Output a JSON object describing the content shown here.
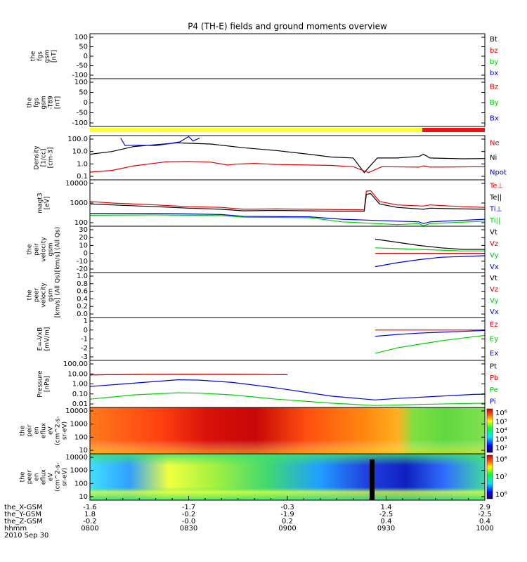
{
  "title": "P4 (TH-E) fields and ground moments overview",
  "colors": {
    "black": "#000000",
    "red": "#e00000",
    "green": "#00d000",
    "blue": "#0000e0",
    "yellow": "#ffff30",
    "bar_red": "#ee1111",
    "frame": "#000000",
    "background": "#ffffff"
  },
  "panels": [
    {
      "id": "fgs",
      "ylabel": [
        "the",
        "fgs",
        "gsm",
        "[nT]"
      ],
      "yticks": [
        "100",
        "50",
        "0",
        "-50",
        "-100"
      ],
      "ylim": [
        -120,
        120
      ],
      "legend": [
        {
          "label": "Bt",
          "color": "#000000"
        },
        {
          "label": "bz",
          "color": "#e00000"
        },
        {
          "label": "by",
          "color": "#00d000"
        },
        {
          "label": "bx",
          "color": "#0000e0"
        }
      ]
    },
    {
      "id": "fgs-t89",
      "ylabel": [
        "the",
        "fgs",
        "gsm",
        "-T89",
        "[nT]"
      ],
      "yticks": [
        "100",
        "50",
        "0",
        "-50",
        "-100"
      ],
      "ylim": [
        -120,
        120
      ],
      "legend": [
        {
          "label": "Bz",
          "color": "#e00000"
        },
        {
          "label": "By",
          "color": "#00d000"
        },
        {
          "label": "Bx",
          "color": "#0000e0"
        }
      ]
    },
    {
      "id": "density",
      "ylabel": [
        "Density",
        "[1/cc]",
        "[cm-3]"
      ],
      "yticks": [
        "100.0",
        "10.0",
        "1.0",
        "0.1"
      ],
      "scale": "log",
      "legend": [
        {
          "label": "Ne",
          "color": "#e00000"
        },
        {
          "label": "Ni",
          "color": "#000000"
        },
        {
          "label": "Npot",
          "color": "#0000e0"
        }
      ]
    },
    {
      "id": "temperature",
      "ylabel": [
        "magt3",
        "[eV]"
      ],
      "yticks": [
        "10000",
        "1000",
        "100"
      ],
      "scale": "log",
      "legend": [
        {
          "label": "Te⊥",
          "color": "#e00000"
        },
        {
          "label": "Te||",
          "color": "#000000"
        },
        {
          "label": "Ti⊥",
          "color": "#0000e0"
        },
        {
          "label": "Ti||",
          "color": "#00d000"
        }
      ]
    },
    {
      "id": "peir-velocity",
      "ylabel": [
        "the",
        "peir",
        "velocity",
        "gsm",
        "[km/s] (All Qs)"
      ],
      "yticks": [
        "30",
        "20",
        "10",
        "0",
        "-10",
        "-20"
      ],
      "ylim": [
        -25,
        30
      ],
      "legend": [
        {
          "label": "Vt",
          "color": "#000000"
        },
        {
          "label": "Vz",
          "color": "#e00000"
        },
        {
          "label": "Vy",
          "color": "#00d000"
        },
        {
          "label": "Vx",
          "color": "#0000e0"
        }
      ]
    },
    {
      "id": "peer-velocity",
      "ylabel": [
        "the",
        "peer",
        "velocity",
        "gsm",
        "[km/s] (All Qs)"
      ],
      "yticks": [
        "1.0",
        "0.8",
        "0.6",
        "0.4",
        "0.2",
        "0.0"
      ],
      "ylim": [
        0,
        1
      ],
      "legend": [
        {
          "label": "Vt",
          "color": "#000000"
        },
        {
          "label": "Vz",
          "color": "#e00000"
        },
        {
          "label": "Vy",
          "color": "#00d000"
        },
        {
          "label": "Vx",
          "color": "#0000e0"
        }
      ]
    },
    {
      "id": "efield",
      "ylabel": [
        "E=-VxB",
        "[mV/m]"
      ],
      "yticks": [
        "1",
        "0",
        "-1",
        "-2",
        "-3"
      ],
      "ylim": [
        -3,
        1.5
      ],
      "legend": [
        {
          "label": "Ez",
          "color": "#e00000"
        },
        {
          "label": "Ey",
          "color": "#00d000"
        },
        {
          "label": "Ex",
          "color": "#0000e0"
        }
      ]
    },
    {
      "id": "pressure",
      "ylabel": [
        "Pressure",
        "[nPa]"
      ],
      "yticks": [
        "100.00",
        "10.00",
        "1.00",
        "0.10",
        "0.01"
      ],
      "scale": "log",
      "legend": [
        {
          "label": "Pt",
          "color": "#000000"
        },
        {
          "label": "Pb",
          "color": "#e00000"
        },
        {
          "label": "Pe",
          "color": "#00d000"
        },
        {
          "label": "Pi",
          "color": "#0000e0"
        }
      ]
    },
    {
      "id": "peir-eflux",
      "ylabel": [
        "the",
        "peir",
        "en",
        "eflux",
        "eV",
        "(cm^2-s-",
        "sr-eV)"
      ],
      "yticks": [
        "10000",
        "1000",
        "100",
        "10"
      ],
      "scale": "log",
      "colorbar_ticks": [
        "10⁶",
        "10⁵",
        "10⁴",
        "10³",
        "10²"
      ]
    },
    {
      "id": "peer-eflux",
      "ylabel": [
        "the",
        "peer",
        "en",
        "eflux",
        "eV",
        "(cm^2-s-",
        "sr-eV)"
      ],
      "yticks": [
        "10000",
        "1000",
        "100",
        "10"
      ],
      "scale": "log",
      "colorbar_ticks": [
        "10⁸",
        "10⁷",
        "10⁶"
      ]
    }
  ],
  "xaxis": {
    "row_labels": [
      "the_X-GSM",
      "the_Y-GSM",
      "the_Z-GSM",
      "hhmm",
      "2010 Sep 30"
    ],
    "ticks": [
      {
        "x": "0800",
        "x_gsm": "-1.6",
        "y_gsm": "1.8",
        "z_gsm": "-0.2"
      },
      {
        "x": "0830",
        "x_gsm": "-1.7",
        "y_gsm": "-0.2",
        "z_gsm": "-0.0"
      },
      {
        "x": "0900",
        "x_gsm": "-0.3",
        "y_gsm": "-1.9",
        "z_gsm": "0.2"
      },
      {
        "x": "0930",
        "x_gsm": "1.4",
        "y_gsm": "-2.5",
        "z_gsm": "0.4"
      },
      {
        "x": "1000",
        "x_gsm": "2.9",
        "y_gsm": "-2.5",
        "z_gsm": "0.4"
      }
    ]
  },
  "chart_data": {
    "type": "line",
    "title": "P4 (TH-E) fields and ground moments overview",
    "x_range": [
      "0800",
      "1000"
    ],
    "mode_bar": {
      "yellow_until": "0941",
      "red_from": "0941"
    },
    "series": {
      "density": {
        "Ni": [
          [
            0,
            6
          ],
          [
            10,
            10
          ],
          [
            20,
            25
          ],
          [
            40,
            50
          ],
          [
            55,
            40
          ],
          [
            70,
            20
          ],
          [
            85,
            12
          ],
          [
            100,
            6
          ],
          [
            110,
            3.6
          ],
          [
            120,
            3.0
          ],
          [
            125,
            0.2
          ],
          [
            131,
            3
          ],
          [
            140,
            3
          ],
          [
            150,
            4
          ],
          [
            152,
            6
          ],
          [
            155,
            3
          ],
          [
            170,
            2.6
          ],
          [
            180,
            2.7
          ]
        ],
        "Ne": [
          [
            0,
            0.22
          ],
          [
            10,
            0.3
          ],
          [
            20,
            0.7
          ],
          [
            35,
            1.5
          ],
          [
            45,
            1.6
          ],
          [
            55,
            1.4
          ],
          [
            63,
            0.8
          ],
          [
            66,
            0.95
          ],
          [
            75,
            1.1
          ],
          [
            85,
            0.9
          ],
          [
            95,
            0.85
          ],
          [
            110,
            0.75
          ],
          [
            120,
            0.6
          ],
          [
            127,
            0.2
          ],
          [
            133,
            0.6
          ],
          [
            150,
            0.55
          ],
          [
            152,
            0.7
          ],
          [
            155,
            0.55
          ],
          [
            180,
            0.6
          ]
        ],
        "Npot": [
          [
            14,
            120
          ],
          [
            16,
            30
          ],
          [
            22,
            32
          ],
          [
            30,
            30
          ],
          [
            35,
            40
          ],
          [
            41,
            60
          ],
          [
            45,
            160
          ],
          [
            47,
            70
          ],
          [
            50,
            120
          ]
        ]
      },
      "temperature": {
        "Te⊥": [
          [
            0,
            1200
          ],
          [
            10,
            1000
          ],
          [
            30,
            800
          ],
          [
            45,
            650
          ],
          [
            60,
            600
          ],
          [
            70,
            480
          ],
          [
            85,
            500
          ],
          [
            100,
            480
          ],
          [
            115,
            460
          ],
          [
            125,
            450
          ],
          [
            126,
            4000
          ],
          [
            128,
            4200
          ],
          [
            132,
            1200
          ],
          [
            140,
            800
          ],
          [
            152,
            700
          ],
          [
            155,
            800
          ],
          [
            170,
            650
          ],
          [
            180,
            600
          ]
        ],
        "Te||": [
          [
            0,
            900
          ],
          [
            10,
            800
          ],
          [
            30,
            650
          ],
          [
            45,
            550
          ],
          [
            60,
            480
          ],
          [
            70,
            400
          ],
          [
            85,
            420
          ],
          [
            100,
            400
          ],
          [
            115,
            380
          ],
          [
            125,
            380
          ],
          [
            126,
            2800
          ],
          [
            128,
            3000
          ],
          [
            132,
            900
          ],
          [
            140,
            600
          ],
          [
            152,
            480
          ],
          [
            155,
            550
          ],
          [
            170,
            500
          ],
          [
            180,
            480
          ]
        ],
        "Ti⊥": [
          [
            0,
            300
          ],
          [
            30,
            300
          ],
          [
            60,
            260
          ],
          [
            70,
            210
          ],
          [
            100,
            200
          ],
          [
            115,
            150
          ],
          [
            140,
            120
          ],
          [
            150,
            110
          ],
          [
            152,
            90
          ],
          [
            155,
            110
          ],
          [
            180,
            150
          ]
        ],
        "Ti||": [
          [
            0,
            240
          ],
          [
            30,
            250
          ],
          [
            60,
            230
          ],
          [
            70,
            190
          ],
          [
            100,
            180
          ],
          [
            115,
            110
          ],
          [
            140,
            80
          ],
          [
            150,
            90
          ],
          [
            152,
            70
          ],
          [
            155,
            90
          ],
          [
            180,
            120
          ]
        ]
      },
      "peir_velocity": {
        "Vt": [
          [
            130,
            18
          ],
          [
            140,
            14
          ],
          [
            150,
            10
          ],
          [
            160,
            7
          ],
          [
            170,
            5
          ],
          [
            180,
            5
          ]
        ],
        "Vz": [
          [
            130,
            0
          ],
          [
            180,
            0
          ]
        ],
        "Vy": [
          [
            130,
            7
          ],
          [
            140,
            6
          ],
          [
            150,
            5
          ],
          [
            160,
            4
          ],
          [
            170,
            3
          ],
          [
            180,
            3
          ]
        ],
        "Vx": [
          [
            130,
            -17
          ],
          [
            140,
            -12
          ],
          [
            150,
            -8
          ],
          [
            160,
            -5
          ],
          [
            170,
            -4
          ],
          [
            180,
            -3
          ]
        ]
      },
      "efield": {
        "Ez": [
          [
            130,
            0
          ],
          [
            180,
            0
          ]
        ],
        "Ey": [
          [
            130,
            -2.6
          ],
          [
            140,
            -2.0
          ],
          [
            150,
            -1.6
          ],
          [
            160,
            -1.2
          ],
          [
            170,
            -0.9
          ],
          [
            180,
            -0.6
          ]
        ],
        "Ex": [
          [
            130,
            -0.7
          ],
          [
            140,
            -0.5
          ],
          [
            150,
            -0.35
          ],
          [
            160,
            -0.25
          ],
          [
            170,
            -0.15
          ],
          [
            180,
            -0.05
          ]
        ]
      },
      "pressure": {
        "Pt": [
          [
            0,
            8
          ],
          [
            25,
            9
          ],
          [
            50,
            9.5
          ],
          [
            75,
            9
          ],
          [
            90,
            8.5
          ]
        ],
        "Pb": [
          [
            0,
            8
          ],
          [
            25,
            9
          ],
          [
            50,
            9.5
          ],
          [
            75,
            9
          ],
          [
            90,
            8.5
          ]
        ],
        "Pi": [
          [
            0,
            0.55
          ],
          [
            20,
            1.2
          ],
          [
            40,
            2.6
          ],
          [
            50,
            2.4
          ],
          [
            65,
            1.4
          ],
          [
            85,
            0.4
          ],
          [
            110,
            0.06
          ],
          [
            130,
            0.025
          ],
          [
            140,
            0.035
          ],
          [
            160,
            0.06
          ],
          [
            175,
            0.09
          ],
          [
            180,
            0.095
          ]
        ],
        "Pe": [
          [
            0,
            0.03
          ],
          [
            20,
            0.08
          ],
          [
            40,
            0.13
          ],
          [
            50,
            0.12
          ],
          [
            65,
            0.08
          ],
          [
            85,
            0.03
          ],
          [
            110,
            0.012
          ],
          [
            130,
            0.007
          ],
          [
            150,
            0.009
          ],
          [
            180,
            0.012
          ]
        ]
      }
    }
  }
}
